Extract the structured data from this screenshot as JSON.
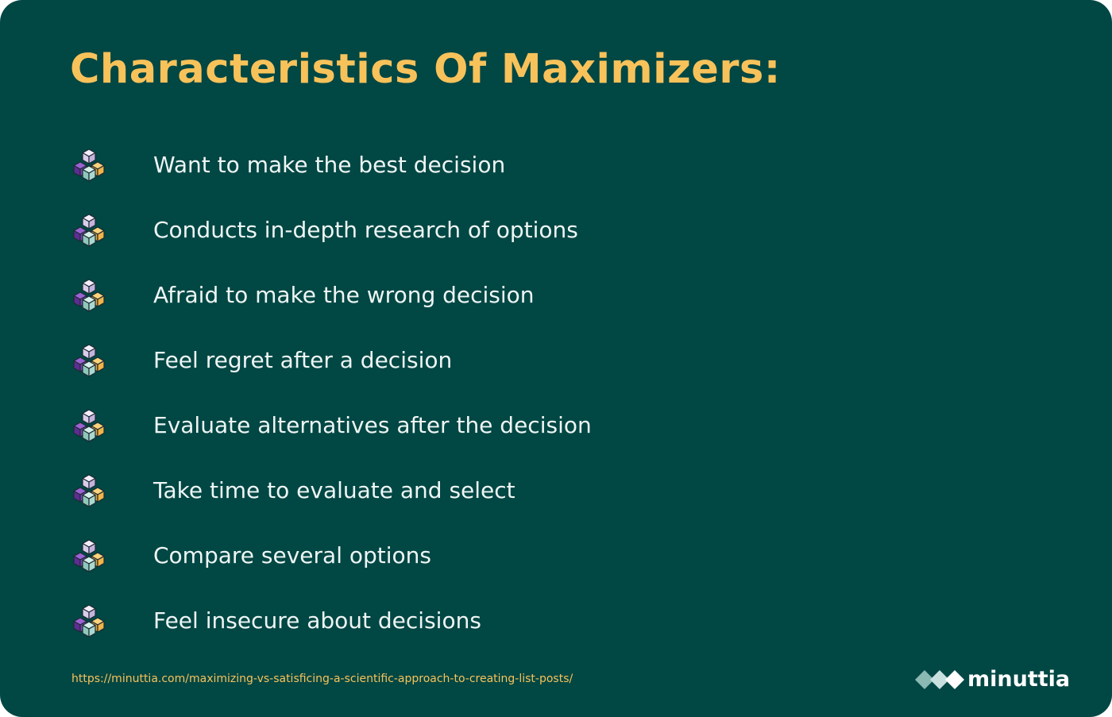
{
  "title": "Characteristics Of Maximizers:",
  "items": [
    {
      "text": "Want to make the best decision",
      "icon": "cubes-icon"
    },
    {
      "text": "Conducts in-depth research of options",
      "icon": "cubes-icon"
    },
    {
      "text": "Afraid to make the wrong decision",
      "icon": "cubes-icon"
    },
    {
      "text": "Feel regret after a decision",
      "icon": "cubes-icon"
    },
    {
      "text": "Evaluate alternatives after the decision",
      "icon": "cubes-icon"
    },
    {
      "text": "Take time to evaluate and select",
      "icon": "cubes-icon"
    },
    {
      "text": "Compare several options",
      "icon": "cubes-icon"
    },
    {
      "text": "Feel insecure about decisions",
      "icon": "cubes-icon"
    }
  ],
  "source_url": "https://minuttia.com/maximizing-vs-satisficing-a-scientific-approach-to-creating-list-posts/",
  "brand": {
    "name": "minuttia",
    "icon": "minuttia-logo-icon"
  },
  "colors": {
    "background": "#014744",
    "title": "#f8c25a",
    "text": "#eef6f4",
    "cube_top": "#e9e1f5",
    "cube_purple": "#7b45b8",
    "cube_orange": "#f8c25a",
    "cube_mint": "#a9d9cf"
  }
}
